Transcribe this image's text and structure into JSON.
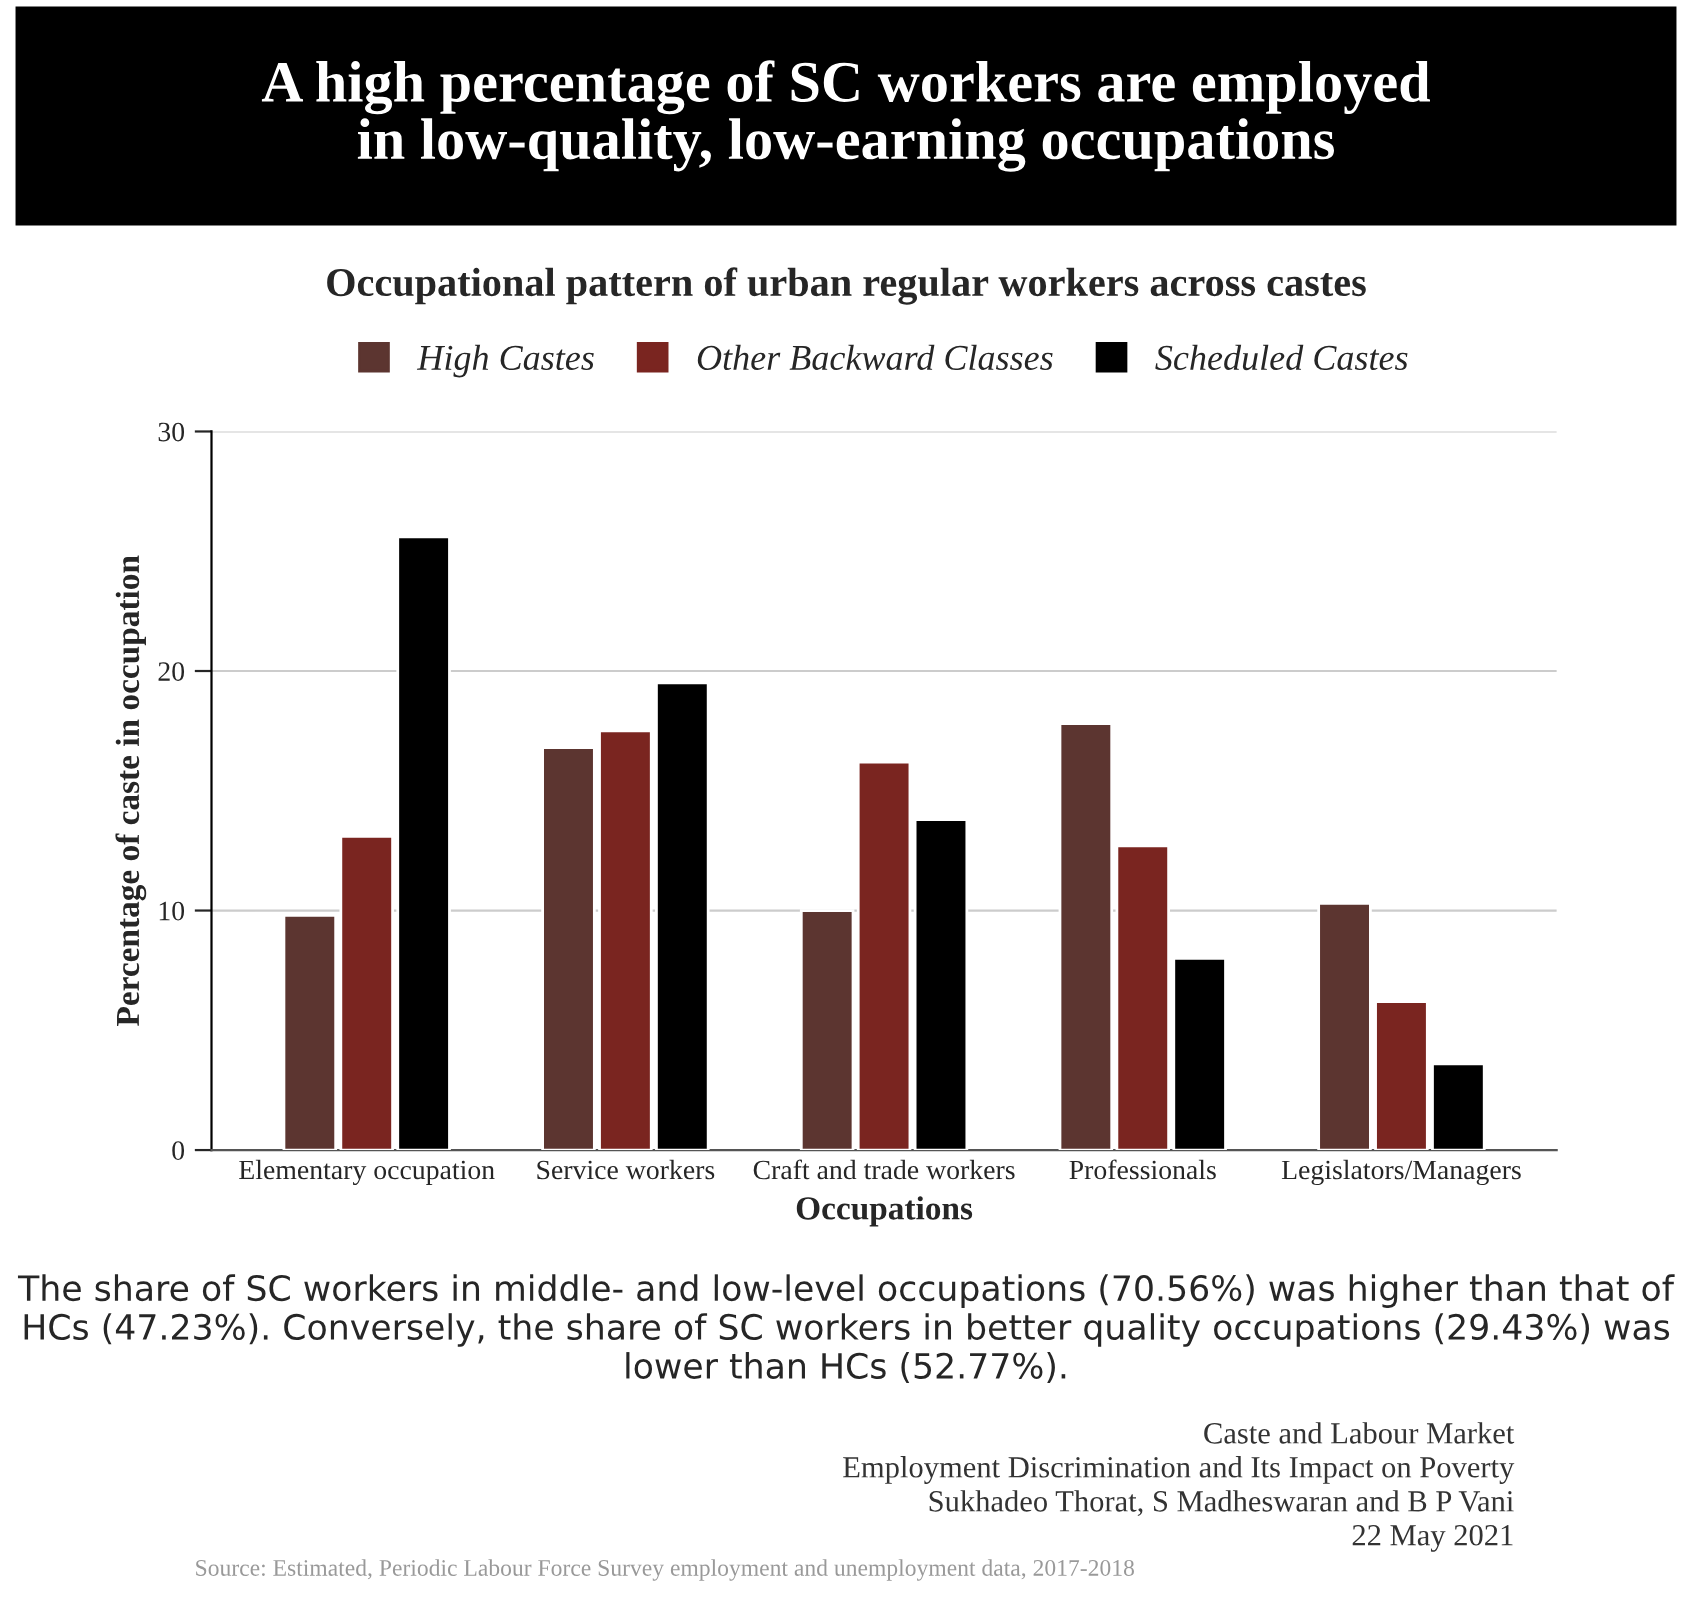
{
  "chart_data": {
    "type": "bar",
    "title": "A high percentage of SC workers are employed\nin low-quality, low-earning occupations",
    "subtitle": "Occupational pattern of urban regular workers across castes",
    "xlabel": "Occupations",
    "ylabel": "Percentage of caste in occupation",
    "categories": [
      "Elementary occupation",
      "Service workers",
      "Craft and trade workers",
      "Professionals",
      "Legislators/Managers"
    ],
    "series": [
      {
        "name": "High Castes",
        "color": "#5c3530",
        "values": [
          9.8,
          16.8,
          10.0,
          17.8,
          10.3
        ]
      },
      {
        "name": "Other Backward Classes",
        "color": "#7a2520",
        "values": [
          13.1,
          17.5,
          16.2,
          12.7,
          6.2
        ]
      },
      {
        "name": "Scheduled Castes",
        "color": "#000000",
        "values": [
          25.6,
          19.5,
          13.8,
          8.0,
          3.6
        ]
      }
    ],
    "ylim": [
      0,
      30
    ],
    "yticks": [
      0,
      10,
      20,
      30
    ],
    "grid": "y",
    "legend": "top",
    "annotations": [
      "The share of SC workers in middle- and low-level occupations (70.56%) was higher than that of HCs (47.23%). Conversely, the share of SC workers in better quality occupations (29.43%) was lower than HCs (52.77%).",
      "Caste and Labour Market",
      "Employment Discrimination and Its Impact on Poverty",
      "Sukhadeo Thorat, S Madheswaran and B P Vani",
      "22 May 2021",
      "Source: Estimated, Periodic Labour Force Survey employment and unemployment data, 2017-2018"
    ]
  }
}
